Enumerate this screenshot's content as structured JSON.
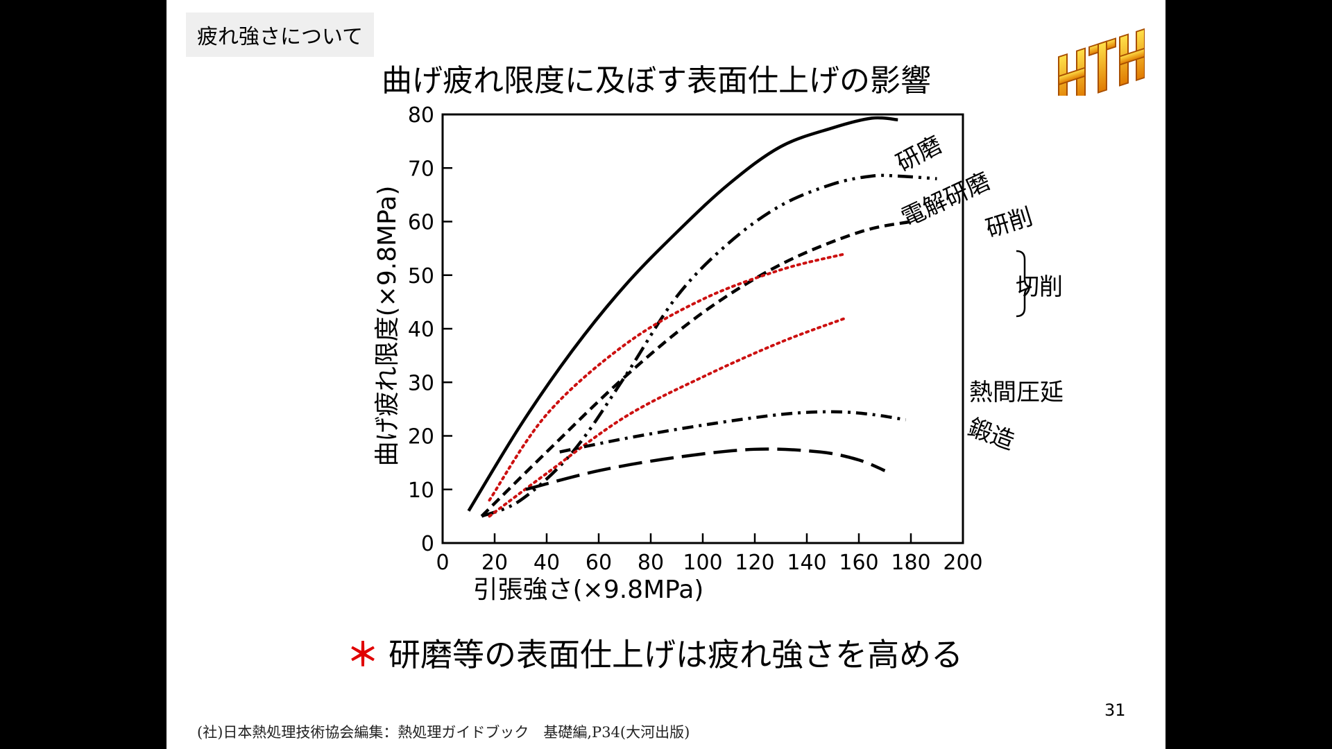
{
  "section": "疲れ強さについて",
  "title": "曲げ疲れ限度に及ぼす表面仕上げの影響",
  "logo_text": "HTH",
  "note": {
    "star": "＊",
    "text": "研磨等の表面仕上げは疲れ強さを高める"
  },
  "page_number": "31",
  "source": "(社)日本熱処理技術協会編集：熱処理ガイドブック　基礎編,P34(大河出版)",
  "colors": {
    "curve": "#000000",
    "machining": "#cc1010",
    "star": "#e00000",
    "background": "#ffffff"
  },
  "chart_data": {
    "type": "line",
    "xlabel": "引張強さ(×9.8MPa)",
    "ylabel": "曲げ疲れ限度(×9.8MPa)",
    "xlim": [
      0,
      200
    ],
    "ylim": [
      0,
      80
    ],
    "xticks": [
      0,
      20,
      40,
      60,
      80,
      100,
      120,
      140,
      160,
      180,
      200
    ],
    "yticks": [
      0,
      10,
      20,
      30,
      40,
      50,
      60,
      70,
      80
    ],
    "grid": false,
    "series": [
      {
        "name": "研磨",
        "style": "solid",
        "x": [
          10,
          30,
          50,
          70,
          90,
          110,
          130,
          150,
          165,
          175
        ],
        "y": [
          6,
          22,
          36,
          48,
          58,
          67,
          74,
          77.5,
          79.3,
          79
        ]
      },
      {
        "name": "電解研磨",
        "style": "dashdotdot",
        "x": [
          15,
          30,
          50,
          70,
          90,
          110,
          130,
          150,
          165,
          175,
          190
        ],
        "y": [
          5,
          8,
          17,
          31,
          46,
          56,
          63,
          67,
          68.5,
          68.5,
          68
        ]
      },
      {
        "name": "研削",
        "style": "dashed",
        "x": [
          15,
          40,
          70,
          100,
          130,
          160,
          180
        ],
        "y": [
          5,
          17,
          31,
          43,
          52,
          58,
          60
        ]
      },
      {
        "name": "切削",
        "style": "dotted",
        "label_group": "切削",
        "x": [
          18,
          40,
          70,
          100,
          130,
          155
        ],
        "y": [
          8,
          24,
          37,
          45.5,
          51,
          54
        ]
      },
      {
        "name": "切削",
        "style": "dotted",
        "label_group": "切削",
        "x": [
          18,
          40,
          70,
          100,
          130,
          155
        ],
        "y": [
          5,
          13,
          23.5,
          31,
          37.5,
          42
        ]
      },
      {
        "name": "熱間圧延",
        "style": "dashdot",
        "x": [
          45,
          70,
          100,
          130,
          150,
          165,
          178
        ],
        "y": [
          17,
          19.5,
          22,
          24,
          24.5,
          24,
          23
        ]
      },
      {
        "name": "鍛造",
        "style": "longdash",
        "x": [
          32,
          60,
          90,
          120,
          145,
          160,
          170
        ],
        "y": [
          10,
          13.5,
          16,
          17.5,
          17,
          15.5,
          13.5
        ]
      }
    ],
    "curve_labels": [
      "研磨",
      "電解研磨",
      "研削",
      "切削",
      "熱間圧延",
      "鍛造"
    ]
  }
}
